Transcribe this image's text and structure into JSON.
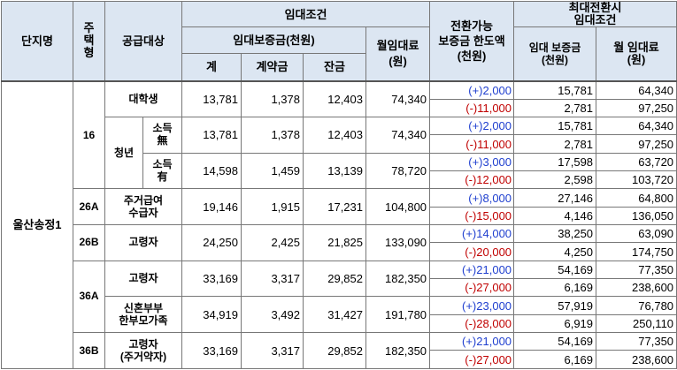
{
  "headers": {
    "complex": "단지명",
    "housing_type": "주\n택\n형",
    "target": "공급대상",
    "lease_conditions": "임대조건",
    "deposit_group": "임대보증금(천원)",
    "total": "계",
    "contract": "계약금",
    "balance": "잔금",
    "monthly_rent": "월임대료\n(원)",
    "conversion_limit": "전환가능\n보증금 한도액\n(천원)",
    "max_conversion": "최대전환시\n임대조건",
    "max_deposit": "임대 보증금\n(천원)",
    "max_rent": "월 임대료\n(원)"
  },
  "complex_name": "울산송정1",
  "rows": [
    {
      "type": "16",
      "target": "대학생",
      "total": "13,781",
      "contract": "1,378",
      "balance": "12,403",
      "rent": "74,340",
      "plus": "(+)2,000",
      "minus": "(-)11,000",
      "dep_up": "15,781",
      "rent_up": "64,340",
      "dep_down": "2,781",
      "rent_down": "97,250"
    },
    {
      "target_group": "청년",
      "sub": "소득\n無",
      "total": "13,781",
      "contract": "1,378",
      "balance": "12,403",
      "rent": "74,340",
      "plus": "(+)2,000",
      "minus": "(-)11,000",
      "dep_up": "15,781",
      "rent_up": "64,340",
      "dep_down": "2,781",
      "rent_down": "97,250"
    },
    {
      "sub": "소득\n有",
      "total": "14,598",
      "contract": "1,459",
      "balance": "13,139",
      "rent": "78,720",
      "plus": "(+)3,000",
      "minus": "(-)12,000",
      "dep_up": "17,598",
      "rent_up": "63,720",
      "dep_down": "2,598",
      "rent_down": "103,720"
    },
    {
      "type": "26A",
      "target": "주거급여\n수급자",
      "total": "19,146",
      "contract": "1,915",
      "balance": "17,231",
      "rent": "104,800",
      "plus": "(+)8,000",
      "minus": "(-)15,000",
      "dep_up": "27,146",
      "rent_up": "64,800",
      "dep_down": "4,146",
      "rent_down": "136,050"
    },
    {
      "type": "26B",
      "target": "고령자",
      "total": "24,250",
      "contract": "2,425",
      "balance": "21,825",
      "rent": "133,090",
      "plus": "(+)14,000",
      "minus": "(-)20,000",
      "dep_up": "38,250",
      "rent_up": "63,090",
      "dep_down": "4,250",
      "rent_down": "174,750"
    },
    {
      "type": "36A",
      "target": "고령자",
      "total": "33,169",
      "contract": "3,317",
      "balance": "29,852",
      "rent": "182,350",
      "plus": "(+)21,000",
      "minus": "(-)27,000",
      "dep_up": "54,169",
      "rent_up": "77,350",
      "dep_down": "6,169",
      "rent_down": "238,600"
    },
    {
      "target": "신혼부부\n한부모가족",
      "total": "34,919",
      "contract": "3,492",
      "balance": "31,427",
      "rent": "191,780",
      "plus": "(+)23,000",
      "minus": "(-)28,000",
      "dep_up": "57,919",
      "rent_up": "76,780",
      "dep_down": "6,919",
      "rent_down": "250,110"
    },
    {
      "type": "36B",
      "target": "고령자\n(주거약자)",
      "total": "33,169",
      "contract": "3,317",
      "balance": "29,852",
      "rent": "182,350",
      "plus": "(+)21,000",
      "minus": "(-)27,000",
      "dep_up": "54,169",
      "rent_up": "77,350",
      "dep_down": "6,169",
      "rent_down": "238,600"
    }
  ]
}
